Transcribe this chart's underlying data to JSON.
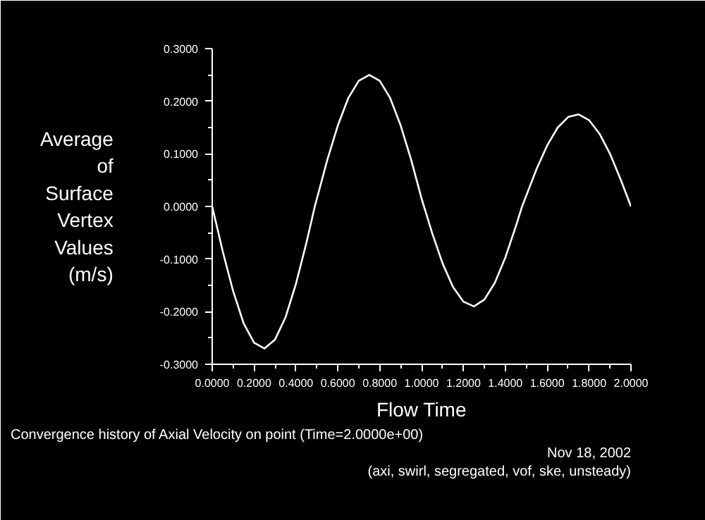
{
  "chart_data": {
    "type": "line",
    "title": "Convergence history of Axial Velocity on point  (Time=2.0000e+00)",
    "xlabel": "Flow Time",
    "ylabel": "Average\nof\nSurface\nVertex\nValues\n(m/s)",
    "annotations": [
      "Nov 18, 2002",
      "(axi, swirl, segregated, vof, ske, unsteady)"
    ],
    "x": [
      0,
      0.05,
      0.1,
      0.15,
      0.2,
      0.25,
      0.3,
      0.35,
      0.4,
      0.45,
      0.49,
      0.55,
      0.6,
      0.65,
      0.7,
      0.75,
      0.8,
      0.85,
      0.9,
      0.95,
      1.0,
      1.05,
      1.1,
      1.15,
      1.2,
      1.25,
      1.3,
      1.35,
      1.4,
      1.45,
      1.48,
      1.55,
      1.6,
      1.65,
      1.7,
      1.75,
      1.8,
      1.85,
      1.9,
      1.95,
      2.0
    ],
    "series": [
      {
        "color": "#ffffff",
        "values": [
          0,
          -0.085,
          -0.161,
          -0.222,
          -0.259,
          -0.27,
          -0.253,
          -0.211,
          -0.147,
          -0.069,
          0,
          0.089,
          0.154,
          0.206,
          0.239,
          0.25,
          0.239,
          0.206,
          0.154,
          0.089,
          0.015,
          -0.05,
          -0.108,
          -0.153,
          -0.181,
          -0.19,
          -0.177,
          -0.145,
          -0.097,
          -0.038,
          0,
          0.072,
          0.116,
          0.15,
          0.17,
          0.175,
          0.164,
          0.138,
          0.1,
          0.052,
          0
        ]
      }
    ],
    "xlim": [
      0,
      2
    ],
    "ylim": [
      -0.3,
      0.3
    ],
    "xticks": [
      {
        "value": 0,
        "label": "0.0000"
      },
      {
        "value": 0.2,
        "label": "0.2000"
      },
      {
        "value": 0.4,
        "label": "0.4000"
      },
      {
        "value": 0.6,
        "label": "0.6000"
      },
      {
        "value": 0.8,
        "label": "0.8000"
      },
      {
        "value": 1.0,
        "label": "1.0000"
      },
      {
        "value": 1.2,
        "label": "1.2000"
      },
      {
        "value": 1.4,
        "label": "1.4000"
      },
      {
        "value": 1.6,
        "label": "1.6000"
      },
      {
        "value": 1.8,
        "label": "1.8000"
      },
      {
        "value": 2.0,
        "label": "2.0000"
      }
    ],
    "yticks": [
      {
        "value": -0.3,
        "label": "-0.3000"
      },
      {
        "value": -0.2,
        "label": "-0.2000"
      },
      {
        "value": -0.1,
        "label": "-0.1000"
      },
      {
        "value": 0,
        "label": "0.0000"
      },
      {
        "value": 0.1,
        "label": "0.1000"
      },
      {
        "value": 0.2,
        "label": "0.2000"
      },
      {
        "value": 0.3,
        "label": "0.3000"
      }
    ],
    "grid": false,
    "marker": "none",
    "line_style": "solid"
  }
}
